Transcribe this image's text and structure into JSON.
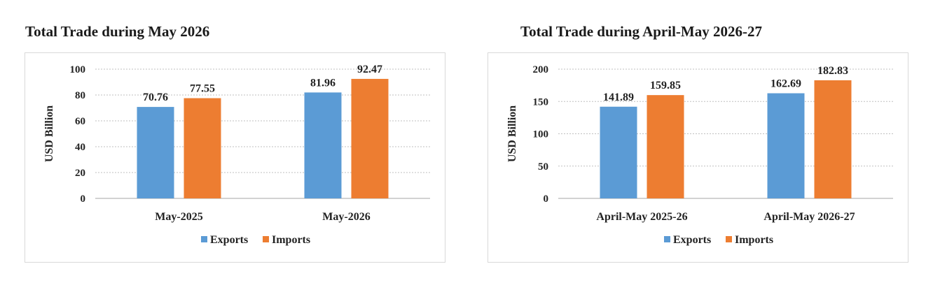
{
  "colors": {
    "exports": "#5b9bd5",
    "imports": "#ed7d31",
    "grid": "#bfbfbf",
    "axis": "#a6a6a6"
  },
  "chart_data": [
    {
      "type": "bar",
      "title": "Total Trade during May 2026",
      "categories": [
        "May-2025",
        "May-2026"
      ],
      "series": [
        {
          "name": "Exports",
          "values": [
            70.76,
            81.96
          ],
          "labels": [
            "70.76",
            "81.96"
          ]
        },
        {
          "name": "Imports",
          "values": [
            77.55,
            92.47
          ],
          "labels": [
            "77.55",
            "92.47"
          ]
        }
      ],
      "ylabel": "USD Billion",
      "ylim": [
        0,
        100
      ],
      "yticks": [
        0,
        20,
        40,
        60,
        80,
        100
      ],
      "grid": true,
      "legend": "bottom"
    },
    {
      "type": "bar",
      "title": "Total Trade during April-May 2026-27",
      "categories": [
        "April-May 2025-26",
        "April-May 2026-27"
      ],
      "series": [
        {
          "name": "Exports",
          "values": [
            141.89,
            162.69
          ],
          "labels": [
            "141.89",
            "162.69"
          ]
        },
        {
          "name": "Imports",
          "values": [
            159.85,
            182.83
          ],
          "labels": [
            "159.85",
            "182.83"
          ]
        }
      ],
      "ylabel": "USD Billion",
      "ylim": [
        0,
        200
      ],
      "yticks": [
        0,
        50,
        100,
        150,
        200
      ],
      "grid": true,
      "legend": "bottom"
    }
  ]
}
